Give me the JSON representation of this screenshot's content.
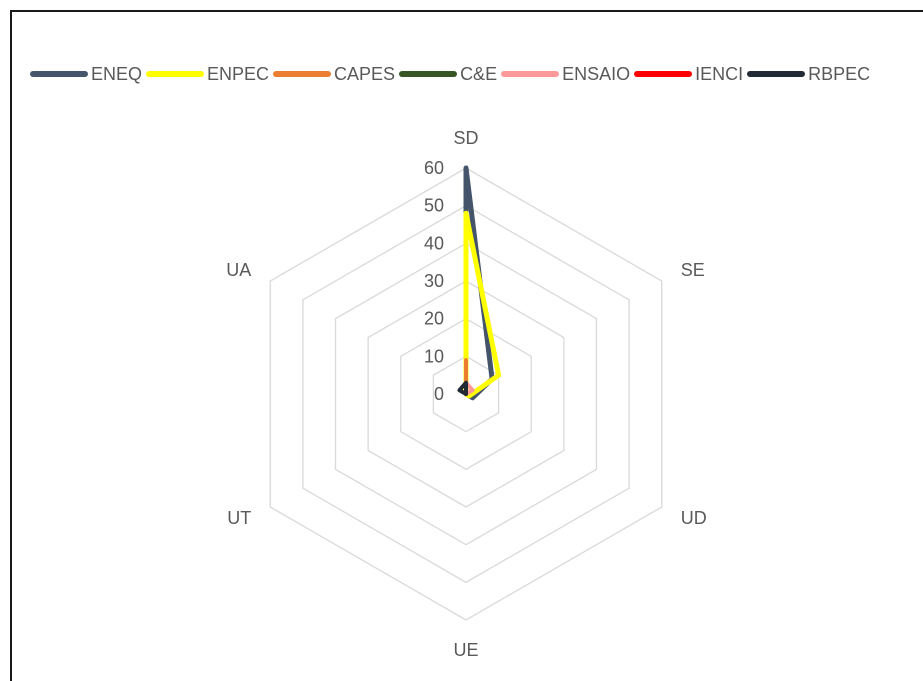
{
  "chart_data": {
    "type": "radar",
    "title": "",
    "axes": [
      "SD",
      "SE",
      "UD",
      "UE",
      "UT",
      "UA"
    ],
    "rlim": [
      0,
      60
    ],
    "ticks": [
      "0",
      "10",
      "20",
      "30",
      "40",
      "50",
      "60"
    ],
    "tick_values": [
      0,
      10,
      20,
      30,
      40,
      50,
      60
    ],
    "grid": true,
    "legend_position": "top",
    "series": [
      {
        "name": "ENEQ",
        "color": "#44546A",
        "values": [
          60,
          8,
          2,
          0,
          0,
          0
        ]
      },
      {
        "name": "ENPEC",
        "color": "#FFFF00",
        "values": [
          48,
          10,
          1,
          0,
          0,
          0
        ]
      },
      {
        "name": "CAPES",
        "color": "#ED7D31",
        "values": [
          9,
          0,
          0,
          0,
          0,
          0
        ]
      },
      {
        "name": "C&E",
        "color": "#375623",
        "values": [
          0,
          0,
          0,
          0,
          0,
          0
        ]
      },
      {
        "name": "ENSAIO",
        "color": "#FF9999",
        "values": [
          3,
          2,
          0,
          0,
          0,
          0
        ]
      },
      {
        "name": "IENCI",
        "color": "#FF0000",
        "values": [
          1,
          0,
          0,
          0,
          0,
          0
        ]
      },
      {
        "name": "RBPEC",
        "color": "#222A35",
        "values": [
          3,
          0,
          0,
          0,
          0,
          2
        ]
      }
    ]
  }
}
